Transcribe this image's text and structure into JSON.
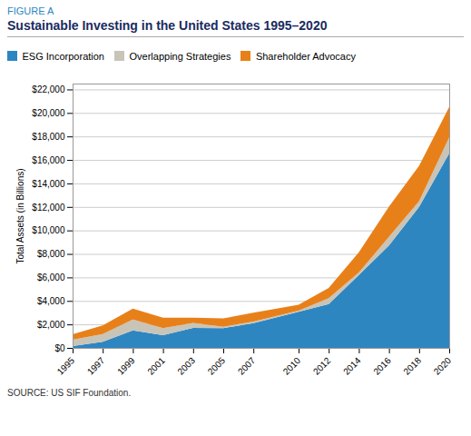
{
  "chart_data": {
    "type": "area",
    "title": "Sustainable Investing in the United States 1995–2020",
    "annotations": [
      "FIGURE A"
    ],
    "caption": "SOURCE: US SIF Foundation.",
    "ylabel": "Total Assets (in Billions)",
    "x": [
      1995,
      1997,
      1999,
      2001,
      2003,
      2005,
      2007,
      2010,
      2012,
      2014,
      2016,
      2018,
      2020
    ],
    "series": [
      {
        "name": "ESG Incorporation",
        "color": "#2E86C1",
        "values": [
          162,
          529,
          1497,
          1087,
          1703,
          1685,
          2098,
          3069,
          3740,
          6200,
          8723,
          11995,
          16571
        ]
      },
      {
        "name": "Overlapping Strategies",
        "color": "#C8C4B8",
        "values": [
          529,
          655,
          922,
          592,
          422,
          117,
          151,
          98,
          498,
          224,
          734,
          496,
          1340
        ]
      },
      {
        "name": "Shareholder Advocacy",
        "color": "#E8801A",
        "values": [
          473,
          736,
          922,
          897,
          448,
          703,
          739,
          497,
          864,
          1723,
          2560,
          3018,
          2600
        ]
      }
    ],
    "stacked": true,
    "xlim": [
      1995,
      2020
    ],
    "xticks": [
      1995,
      1997,
      1999,
      2001,
      2003,
      2005,
      2007,
      2010,
      2012,
      2014,
      2016,
      2018,
      2020
    ],
    "ylim": [
      0,
      22500
    ],
    "yticks": [
      {
        "value": 0,
        "label": "$0"
      },
      {
        "value": 2000,
        "label": "$2,000"
      },
      {
        "value": 4000,
        "label": "$4,000"
      },
      {
        "value": 6000,
        "label": "$6,000"
      },
      {
        "value": 8000,
        "label": "$8,000"
      },
      {
        "value": 10000,
        "label": "$10,000"
      },
      {
        "value": 12000,
        "label": "$12,000"
      },
      {
        "value": 14000,
        "label": "$14,000"
      },
      {
        "value": 16000,
        "label": "$16,000"
      },
      {
        "value": 18000,
        "label": "$18,000"
      },
      {
        "value": 20000,
        "label": "$20,000"
      },
      {
        "value": 22000,
        "label": "$22,000"
      }
    ],
    "grid": true,
    "legend": "top"
  }
}
